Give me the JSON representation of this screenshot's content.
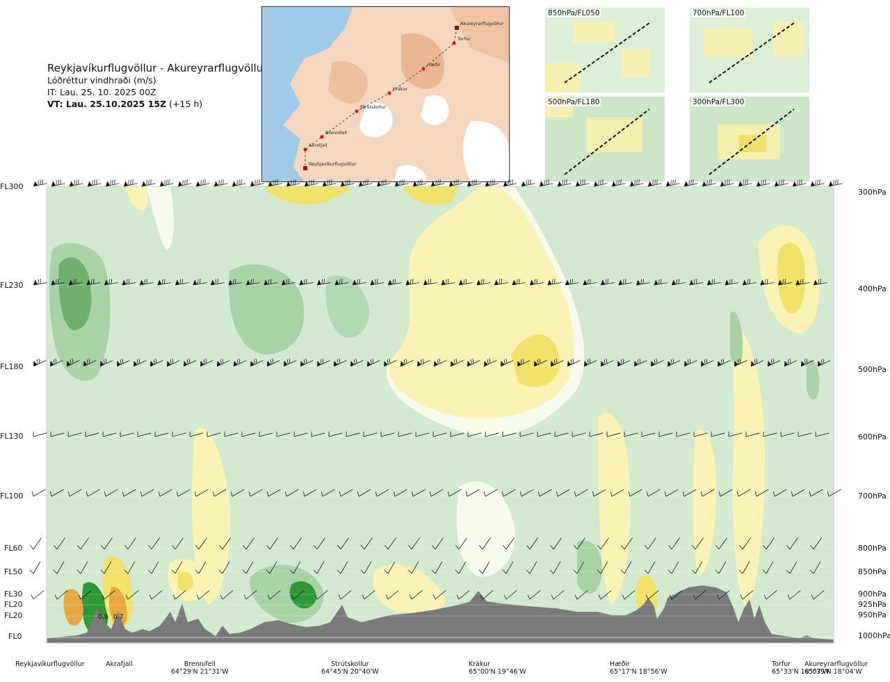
{
  "header": {
    "route": "Reykjavíkurflugvöllur - Akureyrarflugvöllur",
    "subtitle": "Lóðréttur vindhraði (m/s)",
    "issue_time": "IT: Lau. 25. 10. 2025 00Z",
    "valid_time_bold": "VT: Lau. 25.10.2025 15Z",
    "valid_offset": "(+15 h)"
  },
  "map": {
    "places": [
      {
        "name": "Akureyrarflugvöllur"
      },
      {
        "name": "Torfur"
      },
      {
        "name": "Hæðir"
      },
      {
        "name": "Krákur"
      },
      {
        "name": "Strútskollur"
      },
      {
        "name": "Brennifell"
      },
      {
        "name": "Akrafjall"
      },
      {
        "name": "Reykjavíkurflugvöllur"
      }
    ]
  },
  "thumbnails": [
    {
      "label": "850hPa/FL050"
    },
    {
      "label": "700hPa/FL100"
    },
    {
      "label": "500hPa/FL180"
    },
    {
      "label": "300hPa/FL300"
    }
  ],
  "levels": [
    {
      "fl": "FL300",
      "pres": "300hPa"
    },
    {
      "fl": "FL230",
      "pres": "400hPa"
    },
    {
      "fl": "FL180",
      "pres": "500hPa"
    },
    {
      "fl": "FL130",
      "pres": "600hPa"
    },
    {
      "fl": "FL100",
      "pres": "700hPa"
    },
    {
      "fl": "FL60",
      "pres": "800hPa"
    },
    {
      "fl": "FL50",
      "pres": "850hPa"
    },
    {
      "fl": "FL30",
      "pres": "900hPa"
    },
    {
      "fl": "FL20",
      "pres": "925hPa"
    },
    {
      "fl": "FL20",
      "pres": "950hPa"
    },
    {
      "fl": "FL0",
      "pres": "1000hPa"
    }
  ],
  "waypoints": [
    {
      "name": "Reykjavíkurflugvöllur",
      "coord": ""
    },
    {
      "name": "Akrafjall",
      "coord": ""
    },
    {
      "name": "Brennifell",
      "coord": "64°29'N 21°31'W"
    },
    {
      "name": "Strútskollur",
      "coord": "64°45'N 20°40'W"
    },
    {
      "name": "Krákur",
      "coord": "65°00'N 19°46'W"
    },
    {
      "name": "Hæðir",
      "coord": "65°17'N 18°56'W"
    },
    {
      "name": "Torfur",
      "coord": "65°33'N 18°07'W"
    },
    {
      "name": "Akureyrarflugvöllur",
      "coord": "65°39'N 18°04'W"
    }
  ],
  "annotations": [
    "0.9",
    "0.7"
  ],
  "chart_data": {
    "type": "heatmap",
    "title": "Lóðréttur vindhraði (m/s)",
    "xlabel": "",
    "ylabel": "",
    "y_levels_hPa": [
      300,
      400,
      500,
      600,
      700,
      800,
      850,
      900,
      925,
      950,
      1000
    ],
    "colors": {
      "strong_down": "#6fb06f",
      "mod_down": "#a9d3a7",
      "weak_down": "#d2ebd0",
      "near_zero": "#f6fbee",
      "weak_up": "#fbf2b4",
      "mod_up": "#f1e36a",
      "strong_up": "#e6a640",
      "terrain": "#7a7a7a"
    },
    "notable_values": [
      {
        "location": "Akrafjall",
        "level_hPa": 950,
        "value": 0.9
      },
      {
        "location": "Akrafjall",
        "level_hPa": 950,
        "value": 0.7
      }
    ]
  }
}
